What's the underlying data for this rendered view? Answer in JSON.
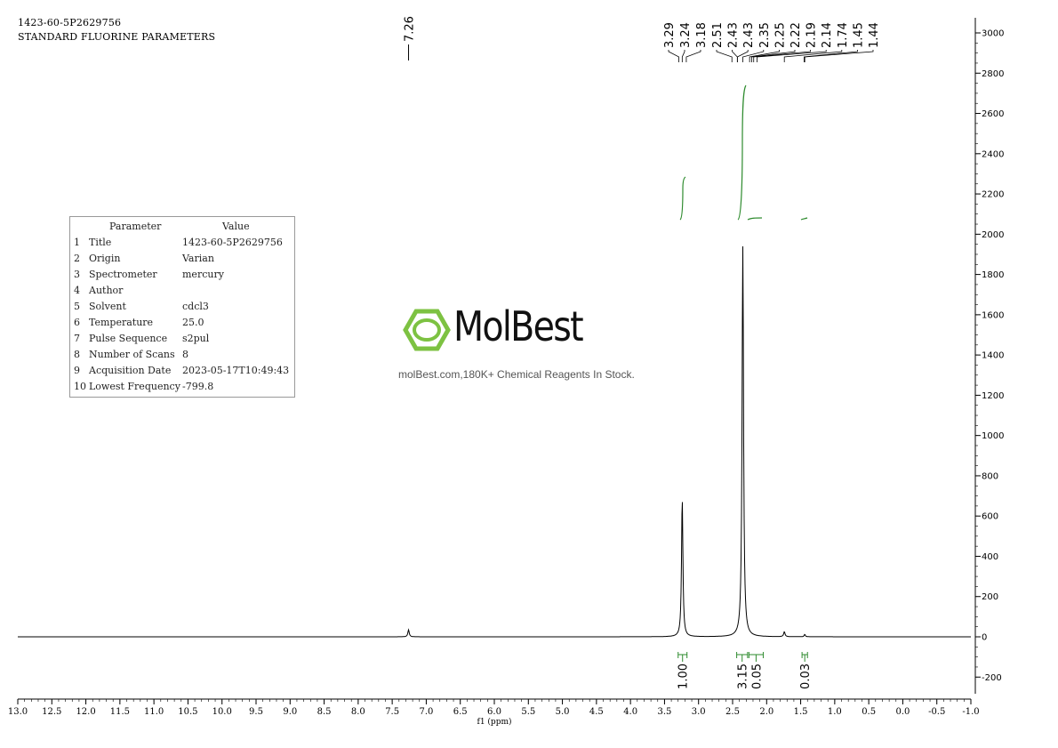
{
  "header": {
    "line1": "1423-60-5P2629756",
    "line2": "STANDARD FLUORINE PARAMETERS"
  },
  "parameters": {
    "col_param": "Parameter",
    "col_value": "Value",
    "rows": [
      {
        "n": "1",
        "name": "Title",
        "value": "1423-60-5P2629756"
      },
      {
        "n": "2",
        "name": "Origin",
        "value": "Varian"
      },
      {
        "n": "3",
        "name": "Spectrometer",
        "value": "mercury"
      },
      {
        "n": "4",
        "name": "Author",
        "value": ""
      },
      {
        "n": "5",
        "name": "Solvent",
        "value": "cdcl3"
      },
      {
        "n": "6",
        "name": "Temperature",
        "value": "25.0"
      },
      {
        "n": "7",
        "name": "Pulse Sequence",
        "value": "s2pul"
      },
      {
        "n": "8",
        "name": "Number of Scans",
        "value": "8"
      },
      {
        "n": "9",
        "name": "Acquisition Date",
        "value": "2023-05-17T10:49:43"
      },
      {
        "n": "10",
        "name": "Lowest Frequency",
        "value": "-799.8"
      }
    ]
  },
  "watermark": {
    "brand": "MolBest",
    "tagline": "molBest.com,180K+ Chemical Reagents In Stock.",
    "brand_color": "#7dc242"
  },
  "chart_data": {
    "type": "line",
    "xlabel": "f1 (ppm)",
    "xlim": [
      13.0,
      -1.0
    ],
    "ylim": [
      -250,
      3080
    ],
    "x_ticks": [
      "13.0",
      "12.5",
      "12.0",
      "11.5",
      "11.0",
      "10.5",
      "10.0",
      "9.5",
      "9.0",
      "8.5",
      "8.0",
      "7.5",
      "7.0",
      "6.5",
      "6.0",
      "5.5",
      "5.0",
      "4.5",
      "4.0",
      "3.5",
      "3.0",
      "2.5",
      "2.0",
      "1.5",
      "1.0",
      "0.5",
      "0.0",
      "-0.5",
      "-1.0"
    ],
    "y_ticks": [
      3000,
      2800,
      2600,
      2400,
      2200,
      2000,
      1800,
      1600,
      1400,
      1200,
      1000,
      800,
      600,
      400,
      200,
      0,
      -200
    ],
    "peaks": [
      {
        "ppm": 7.26,
        "height": 35
      },
      {
        "ppm": 3.24,
        "height": 690
      },
      {
        "ppm": 2.35,
        "height": 1940
      },
      {
        "ppm": 1.74,
        "height": 25
      },
      {
        "ppm": 1.44,
        "height": 12
      }
    ],
    "peak_labels_single": [
      "7.26"
    ],
    "peak_labels_group1": [
      "3.29",
      "3.24",
      "3.18"
    ],
    "peak_labels_group2": [
      "2.51",
      "2.43",
      "2.43",
      "2.35",
      "2.25",
      "2.22",
      "2.19",
      "2.14",
      "1.74",
      "1.45",
      "1.44"
    ],
    "integrals": [
      {
        "from": 3.3,
        "to": 3.17,
        "value": "1.00"
      },
      {
        "from": 2.44,
        "to": 2.28,
        "value": "3.15"
      },
      {
        "from": 2.26,
        "to": 2.05,
        "value": "0.05"
      },
      {
        "from": 1.48,
        "to": 1.4,
        "value": "0.03"
      }
    ],
    "line_color": "#000000",
    "integral_color": "#2e8b2e"
  }
}
